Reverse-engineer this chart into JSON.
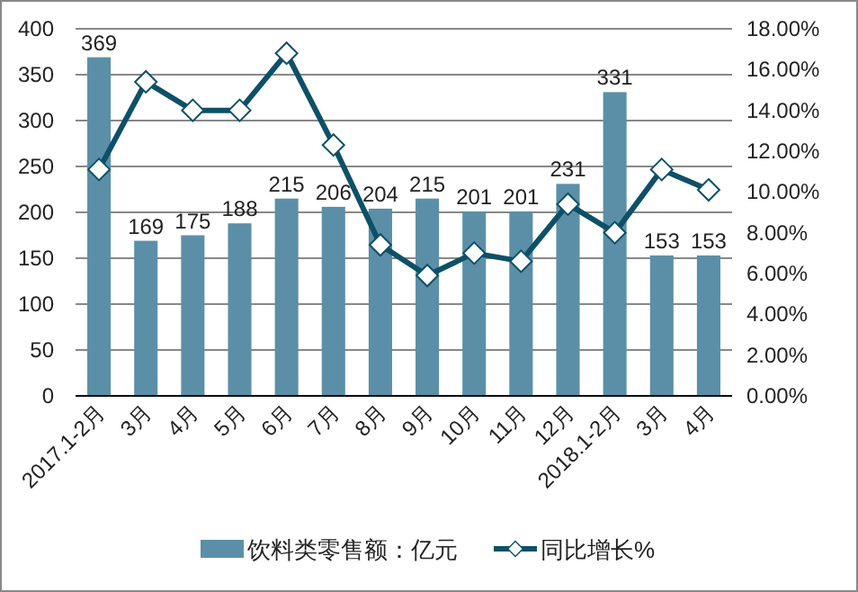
{
  "chart_data": {
    "type": "bar",
    "categories": [
      "2017.1-2月",
      "3月",
      "4月",
      "5月",
      "6月",
      "7月",
      "8月",
      "9月",
      "10月",
      "11月",
      "12月",
      "2018.1-2月",
      "3月",
      "4月"
    ],
    "series": [
      {
        "name": "饮料类零售额：亿元",
        "color": "#5b8fa8",
        "values": [
          369,
          169,
          175,
          188,
          215,
          206,
          204,
          215,
          201,
          201,
          231,
          331,
          153,
          153
        ],
        "value_labels": [
          "369",
          "169",
          "175",
          "188",
          "215",
          "206",
          "204",
          "215",
          "201",
          "201",
          "231",
          "331",
          "153",
          "153"
        ]
      },
      {
        "name": "同比增长%",
        "type": "line",
        "axis": "y2",
        "color": "#0d5068",
        "marker": "diamond",
        "values": [
          11.1,
          15.4,
          14.0,
          14.0,
          16.8,
          12.3,
          7.4,
          5.9,
          7.0,
          6.6,
          9.4,
          8.0,
          11.1,
          10.1
        ]
      }
    ],
    "ylim": [
      0,
      400
    ],
    "yticks": [
      0,
      50,
      100,
      150,
      200,
      250,
      300,
      350,
      400
    ],
    "y2lim": [
      0,
      18
    ],
    "y2ticks": [
      {
        "value": 0,
        "label": "0.00%"
      },
      {
        "value": 2,
        "label": "2.00%"
      },
      {
        "value": 4,
        "label": "4.00%"
      },
      {
        "value": 6,
        "label": "6.00%"
      },
      {
        "value": 8,
        "label": "8.00%"
      },
      {
        "value": 10,
        "label": "10.00%"
      },
      {
        "value": 12,
        "label": "12.00%"
      },
      {
        "value": 14,
        "label": "14.00%"
      },
      {
        "value": 16,
        "label": "16.00%"
      },
      {
        "value": 18,
        "label": "18.00%"
      }
    ],
    "grid": "y",
    "legend": "bottom"
  }
}
